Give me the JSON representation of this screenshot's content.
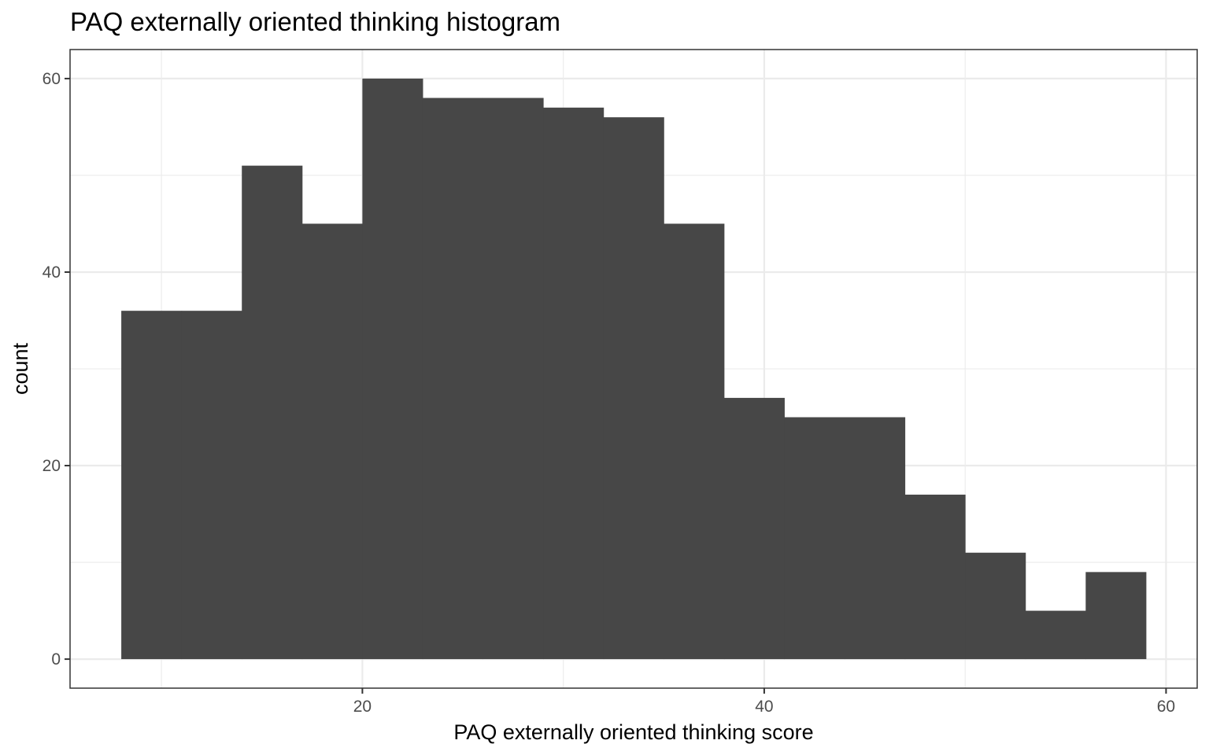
{
  "chart_data": {
    "type": "bar",
    "subtype": "histogram",
    "title": "PAQ externally oriented thinking histogram",
    "xlabel": "PAQ externally oriented thinking score",
    "ylabel": "count",
    "bin_width": 3,
    "bins": [
      {
        "x0": 8,
        "x1": 11,
        "count": 36
      },
      {
        "x0": 11,
        "x1": 14,
        "count": 36
      },
      {
        "x0": 14,
        "x1": 17,
        "count": 51
      },
      {
        "x0": 17,
        "x1": 20,
        "count": 45
      },
      {
        "x0": 20,
        "x1": 23,
        "count": 60
      },
      {
        "x0": 23,
        "x1": 26,
        "count": 58
      },
      {
        "x0": 26,
        "x1": 29,
        "count": 58
      },
      {
        "x0": 29,
        "x1": 32,
        "count": 57
      },
      {
        "x0": 32,
        "x1": 35,
        "count": 56
      },
      {
        "x0": 35,
        "x1": 38,
        "count": 45
      },
      {
        "x0": 38,
        "x1": 41,
        "count": 27
      },
      {
        "x0": 41,
        "x1": 44,
        "count": 25
      },
      {
        "x0": 44,
        "x1": 47,
        "count": 25
      },
      {
        "x0": 47,
        "x1": 50,
        "count": 17
      },
      {
        "x0": 50,
        "x1": 53,
        "count": 11
      },
      {
        "x0": 53,
        "x1": 56,
        "count": 5
      },
      {
        "x0": 56,
        "x1": 59,
        "count": 9
      }
    ],
    "xlim": [
      5.45,
      61.55
    ],
    "ylim": [
      -3,
      63
    ],
    "x_ticks": [
      20,
      40,
      60
    ],
    "x_minor": [
      10,
      30,
      50
    ],
    "y_ticks": [
      0,
      20,
      40,
      60
    ],
    "y_minor": [
      10,
      30,
      50
    ],
    "bar_color": "#474747",
    "grid": true,
    "theme": "bw"
  }
}
